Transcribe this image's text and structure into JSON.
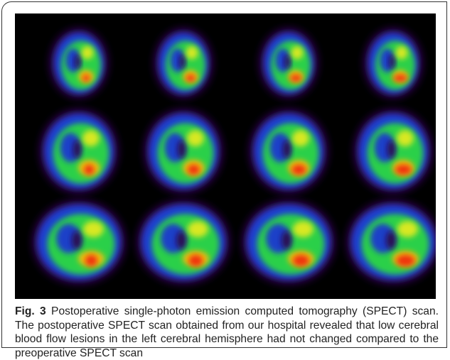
{
  "figure": {
    "label": "Fig. 3",
    "caption": "Postoperative single-photon emission computed tomography (SPECT) scan. The postoperative SPECT scan obtained from our hospital revealed that low cerebral blood flow lesions in the left cerebral hemisphere had not changed compared to the preoperative SPECT scan"
  }
}
